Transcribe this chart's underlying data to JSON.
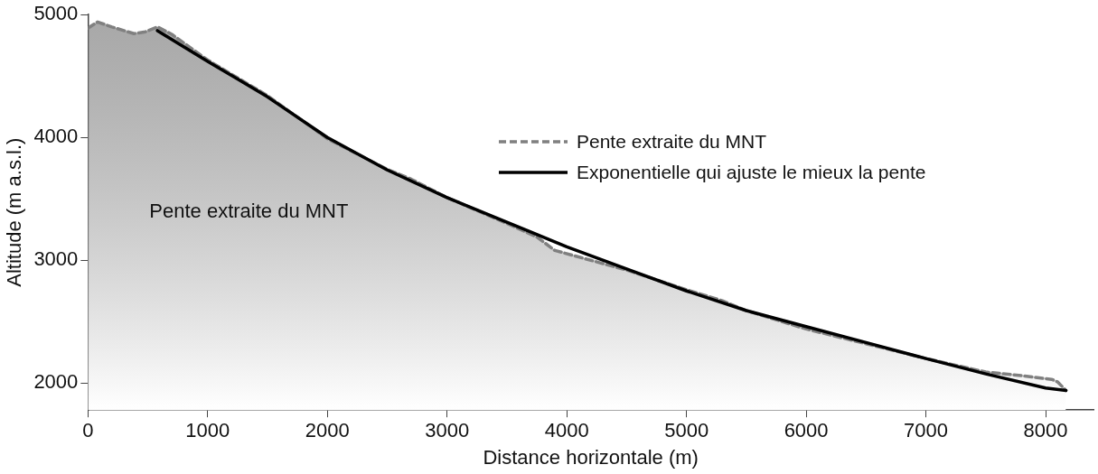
{
  "chart_data": {
    "type": "line",
    "xlabel": "Distance horizontale (m)",
    "ylabel": "Altitude (m a.s.l.)",
    "xlim": [
      0,
      8400
    ],
    "xticks": [
      0,
      1000,
      2000,
      3000,
      4000,
      5000,
      6000,
      7000,
      8000
    ],
    "ylim": [
      1780,
      5000
    ],
    "yticks": [
      2000,
      3000,
      4000,
      5000
    ],
    "grid": false,
    "legend": "top right",
    "marker": "none",
    "annotations": [
      "Pente extraite du MNT"
    ],
    "series": [
      {
        "name": "Pente extraite du MNT",
        "type": "area",
        "color": "#808080",
        "line_style": "dashed",
        "x": [
          0,
          80,
          200,
          385,
          480,
          580,
          700,
          1000,
          1500,
          2000,
          2500,
          2700,
          3000,
          3500,
          3750,
          3900,
          4200,
          4500,
          5000,
          5300,
          5500,
          6000,
          6500,
          7000,
          7500,
          7800,
          8050,
          8100,
          8170
        ],
        "values": [
          4890,
          4940,
          4900,
          4845,
          4860,
          4900,
          4840,
          4630,
          4340,
          3990,
          3740,
          3660,
          3510,
          3300,
          3190,
          3080,
          3000,
          2920,
          2760,
          2670,
          2590,
          2440,
          2320,
          2200,
          2090,
          2060,
          2030,
          2010,
          1940
        ]
      },
      {
        "name": "Exponentielle qui ajuste le mieux la pente",
        "type": "line",
        "color": "#000000",
        "line_style": "solid",
        "x": [
          580,
          1000,
          1500,
          2000,
          2500,
          3000,
          3500,
          4000,
          4500,
          5000,
          5500,
          6000,
          6500,
          7000,
          7500,
          8000,
          8170
        ],
        "values": [
          4870,
          4620,
          4330,
          4000,
          3735,
          3510,
          3310,
          3110,
          2930,
          2750,
          2590,
          2460,
          2330,
          2200,
          2075,
          1960,
          1940
        ]
      }
    ]
  }
}
